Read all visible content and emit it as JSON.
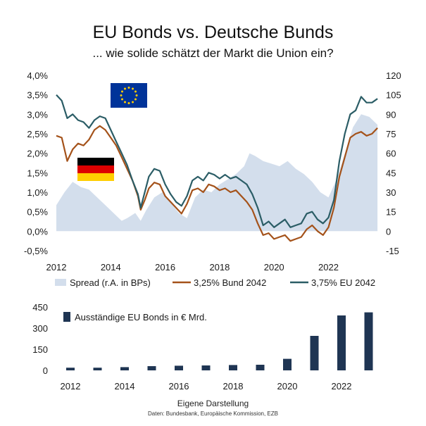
{
  "chart_title": "EU Bonds vs. Deutsche Bunds",
  "chart_subtitle": "... wie solide schätzt der Markt die Union ein?",
  "credit": "Eigene Darstellung",
  "source": "Daten: Bundesbank, Europäische Kommission, EZB",
  "colors": {
    "spread": "#d3deec",
    "bund": "#a4521a",
    "eu": "#2b5d66",
    "outstanding": "#1f3553",
    "eu_flag_blue": "#003399",
    "eu_flag_stars": "#ffcc00",
    "de_black": "#000000",
    "de_red": "#dd0000",
    "de_gold": "#ffce00"
  },
  "icons": [
    "eu-flag-icon",
    "german-flag-icon"
  ],
  "chart_data": [
    {
      "type": "line",
      "x_ticks": [
        "2012",
        "2014",
        "2016",
        "2018",
        "2020",
        "2022"
      ],
      "y_left_ticks": [
        "4,0%",
        "3,5%",
        "3,0%",
        "2,5%",
        "2,0%",
        "1,5%",
        "1,0%",
        "0,5%",
        "0,0%",
        "-0,5%"
      ],
      "y_right_ticks": [
        "120",
        "105",
        "90",
        "75",
        "60",
        "45",
        "30",
        "15",
        "0",
        "-15"
      ],
      "ylim_left": [
        -0.5,
        4.0
      ],
      "ylim_right": [
        -15,
        120
      ],
      "xlim": [
        2012.0,
        2023.85
      ],
      "legend_position": "bottom",
      "grid": false,
      "series": [
        {
          "name": "Spread (r.A. in BPs)",
          "type": "area",
          "axis": "right",
          "x": [
            2012.0,
            2012.3,
            2012.6,
            2012.9,
            2013.2,
            2013.5,
            2013.8,
            2014.1,
            2014.4,
            2014.6,
            2014.9,
            2015.1,
            2015.3,
            2015.6,
            2015.9,
            2016.2,
            2016.5,
            2016.8,
            2017.1,
            2017.4,
            2017.7,
            2018.0,
            2018.3,
            2018.6,
            2018.9,
            2019.1,
            2019.3,
            2019.6,
            2019.9,
            2020.2,
            2020.5,
            2020.8,
            2021.1,
            2021.4,
            2021.7,
            2022.0,
            2022.3,
            2022.6,
            2022.9,
            2023.2,
            2023.5,
            2023.8
          ],
          "values": [
            20,
            30,
            38,
            34,
            32,
            26,
            20,
            14,
            8,
            10,
            14,
            8,
            16,
            26,
            30,
            22,
            14,
            10,
            26,
            32,
            30,
            36,
            40,
            44,
            50,
            60,
            58,
            54,
            52,
            50,
            54,
            48,
            44,
            38,
            30,
            26,
            40,
            60,
            80,
            90,
            88,
            82
          ]
        },
        {
          "name": "3,25% Bund 2042",
          "type": "line",
          "axis": "left",
          "x": [
            2012.0,
            2012.2,
            2012.4,
            2012.6,
            2012.8,
            2013.0,
            2013.2,
            2013.4,
            2013.6,
            2013.8,
            2014.0,
            2014.2,
            2014.4,
            2014.6,
            2014.8,
            2015.0,
            2015.1,
            2015.25,
            2015.4,
            2015.6,
            2015.8,
            2016.0,
            2016.2,
            2016.4,
            2016.6,
            2016.8,
            2017.0,
            2017.2,
            2017.4,
            2017.6,
            2017.8,
            2018.0,
            2018.2,
            2018.4,
            2018.6,
            2018.8,
            2019.0,
            2019.2,
            2019.4,
            2019.6,
            2019.8,
            2020.0,
            2020.2,
            2020.4,
            2020.6,
            2020.8,
            2021.0,
            2021.2,
            2021.4,
            2021.6,
            2021.8,
            2022.0,
            2022.2,
            2022.4,
            2022.6,
            2022.8,
            2023.0,
            2023.2,
            2023.4,
            2023.6,
            2023.8
          ],
          "values": [
            2.45,
            2.4,
            1.8,
            2.1,
            2.25,
            2.2,
            2.35,
            2.6,
            2.7,
            2.6,
            2.4,
            2.2,
            1.9,
            1.6,
            1.3,
            0.9,
            0.55,
            0.8,
            1.1,
            1.25,
            1.2,
            0.9,
            0.75,
            0.6,
            0.45,
            0.7,
            1.05,
            1.1,
            1.0,
            1.2,
            1.15,
            1.05,
            1.1,
            1.0,
            1.05,
            0.9,
            0.75,
            0.55,
            0.2,
            -0.1,
            -0.05,
            -0.2,
            -0.15,
            -0.1,
            -0.25,
            -0.2,
            -0.15,
            0.05,
            0.15,
            0.0,
            -0.1,
            0.1,
            0.6,
            1.4,
            1.9,
            2.4,
            2.5,
            2.55,
            2.45,
            2.5,
            2.65
          ]
        },
        {
          "name": "3,75% EU 2042",
          "type": "line",
          "axis": "left",
          "x": [
            2012.0,
            2012.2,
            2012.4,
            2012.6,
            2012.8,
            2013.0,
            2013.2,
            2013.4,
            2013.6,
            2013.8,
            2014.0,
            2014.2,
            2014.4,
            2014.6,
            2014.8,
            2015.0,
            2015.1,
            2015.25,
            2015.4,
            2015.6,
            2015.8,
            2016.0,
            2016.2,
            2016.4,
            2016.6,
            2016.8,
            2017.0,
            2017.2,
            2017.4,
            2017.6,
            2017.8,
            2018.0,
            2018.2,
            2018.4,
            2018.6,
            2018.8,
            2019.0,
            2019.2,
            2019.4,
            2019.6,
            2019.8,
            2020.0,
            2020.2,
            2020.4,
            2020.6,
            2020.8,
            2021.0,
            2021.2,
            2021.4,
            2021.6,
            2021.8,
            2022.0,
            2022.2,
            2022.4,
            2022.6,
            2022.8,
            2023.0,
            2023.2,
            2023.4,
            2023.6,
            2023.8
          ],
          "values": [
            3.5,
            3.35,
            2.9,
            3.0,
            2.85,
            2.8,
            2.65,
            2.85,
            2.95,
            2.9,
            2.6,
            2.3,
            2.0,
            1.7,
            1.3,
            0.95,
            0.6,
            1.0,
            1.4,
            1.6,
            1.55,
            1.2,
            0.95,
            0.75,
            0.65,
            0.9,
            1.3,
            1.4,
            1.3,
            1.5,
            1.45,
            1.35,
            1.45,
            1.35,
            1.4,
            1.3,
            1.2,
            0.95,
            0.6,
            0.15,
            0.25,
            0.1,
            0.2,
            0.3,
            0.1,
            0.15,
            0.2,
            0.45,
            0.5,
            0.3,
            0.2,
            0.35,
            0.8,
            1.8,
            2.5,
            3.0,
            3.1,
            3.45,
            3.3,
            3.3,
            3.4
          ]
        }
      ]
    },
    {
      "type": "bar",
      "x_ticks": [
        "2012",
        "2014",
        "2016",
        "2018",
        "2020",
        "2022"
      ],
      "y_ticks": [
        "450",
        "300",
        "150",
        "0"
      ],
      "ylim": [
        0,
        450
      ],
      "legend_position": "top-left",
      "grid": false,
      "series": [
        {
          "name": "Ausständige EU Bonds in € Mrd.",
          "categories": [
            "2012",
            "2013",
            "2014",
            "2015",
            "2016",
            "2017",
            "2018",
            "2019",
            "2020",
            "2021",
            "2022",
            "2023"
          ],
          "values": [
            19,
            19,
            23,
            30,
            33,
            35,
            38,
            40,
            82,
            245,
            390,
            412
          ]
        }
      ]
    }
  ]
}
